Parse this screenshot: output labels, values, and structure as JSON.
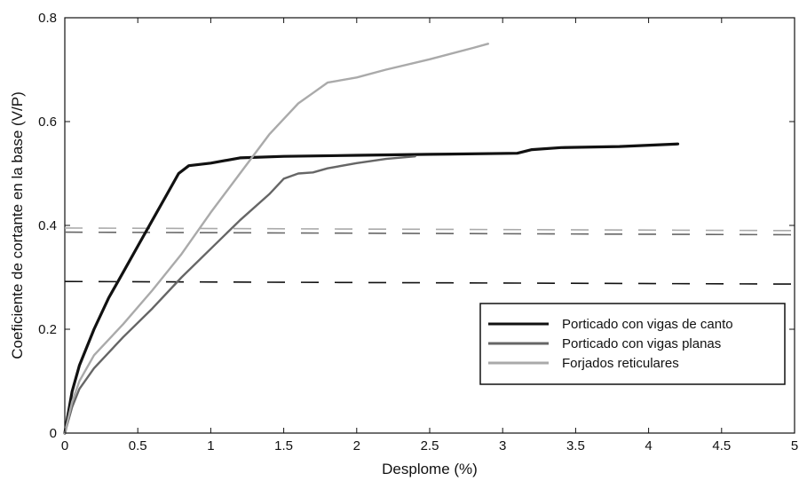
{
  "chart_data": {
    "type": "line",
    "title": "",
    "xlabel": "Desplome (%)",
    "ylabel": "Coeficiente de cortante en la base (V/P)",
    "xlim": [
      0,
      5
    ],
    "ylim": [
      0,
      0.8
    ],
    "x_ticks": [
      "0",
      "0.5",
      "1",
      "1.5",
      "2",
      "2.5",
      "3",
      "3.5",
      "4",
      "4.5",
      "5"
    ],
    "y_ticks": [
      "0",
      "0.2",
      "0.4",
      "0.6",
      "0.8"
    ],
    "grid": false,
    "legend_position": "bottom-right",
    "series": [
      {
        "name": "Porticado con vigas de canto",
        "color": "#111111",
        "points": [
          [
            0,
            0
          ],
          [
            0.05,
            0.08
          ],
          [
            0.1,
            0.13
          ],
          [
            0.2,
            0.2
          ],
          [
            0.3,
            0.26
          ],
          [
            0.4,
            0.31
          ],
          [
            0.5,
            0.36
          ],
          [
            0.6,
            0.41
          ],
          [
            0.7,
            0.46
          ],
          [
            0.78,
            0.5
          ],
          [
            0.85,
            0.515
          ],
          [
            1.0,
            0.52
          ],
          [
            1.2,
            0.53
          ],
          [
            1.5,
            0.533
          ],
          [
            2.0,
            0.535
          ],
          [
            2.5,
            0.537
          ],
          [
            3.1,
            0.539
          ],
          [
            3.2,
            0.546
          ],
          [
            3.4,
            0.55
          ],
          [
            3.8,
            0.552
          ],
          [
            4.2,
            0.557
          ]
        ]
      },
      {
        "name": "Porticado con vigas planas",
        "color": "#666666",
        "points": [
          [
            0,
            0
          ],
          [
            0.05,
            0.05
          ],
          [
            0.1,
            0.085
          ],
          [
            0.2,
            0.125
          ],
          [
            0.4,
            0.185
          ],
          [
            0.6,
            0.24
          ],
          [
            0.8,
            0.3
          ],
          [
            1.0,
            0.355
          ],
          [
            1.2,
            0.41
          ],
          [
            1.4,
            0.46
          ],
          [
            1.5,
            0.49
          ],
          [
            1.6,
            0.5
          ],
          [
            1.7,
            0.502
          ],
          [
            1.8,
            0.51
          ],
          [
            2.0,
            0.52
          ],
          [
            2.2,
            0.528
          ],
          [
            2.4,
            0.533
          ]
        ]
      },
      {
        "name": "Forjados reticulares",
        "color": "#aaaaaa",
        "points": [
          [
            0,
            0
          ],
          [
            0.05,
            0.06
          ],
          [
            0.1,
            0.1
          ],
          [
            0.2,
            0.15
          ],
          [
            0.4,
            0.21
          ],
          [
            0.6,
            0.275
          ],
          [
            0.8,
            0.345
          ],
          [
            1.0,
            0.425
          ],
          [
            1.2,
            0.5
          ],
          [
            1.4,
            0.575
          ],
          [
            1.6,
            0.635
          ],
          [
            1.7,
            0.655
          ],
          [
            1.8,
            0.675
          ],
          [
            2.0,
            0.685
          ],
          [
            2.2,
            0.7
          ],
          [
            2.5,
            0.72
          ],
          [
            2.8,
            0.742
          ],
          [
            2.9,
            0.75
          ]
        ]
      }
    ],
    "reference_lines": [
      {
        "color": "#aaaaaa",
        "values": [
          0.395,
          0.39
        ]
      },
      {
        "color": "#666666",
        "values": [
          0.387,
          0.382
        ]
      },
      {
        "color": "#111111",
        "values": [
          0.292,
          0.287
        ]
      }
    ]
  }
}
